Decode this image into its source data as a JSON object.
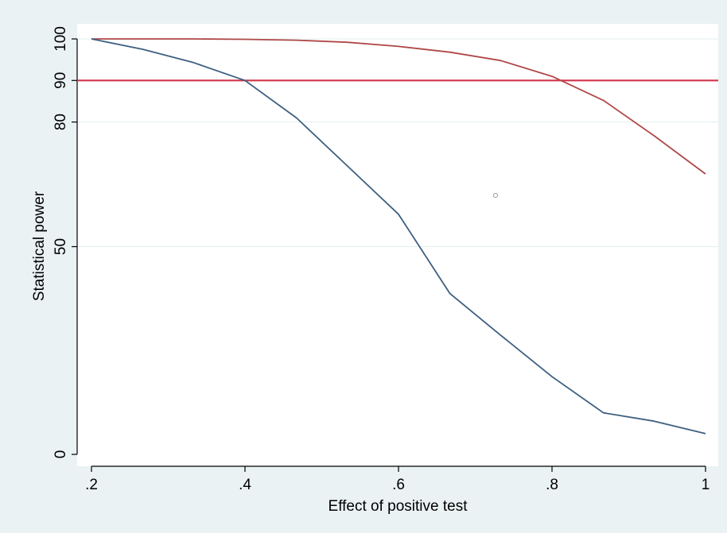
{
  "chart_data": {
    "type": "line",
    "title": "",
    "xlabel": "Effect of positive test",
    "ylabel": "Statistical power",
    "xlim": [
      0.2,
      1.0
    ],
    "ylim": [
      0,
      100
    ],
    "x_ticks": [
      {
        "value": 0.2,
        "label": ".2"
      },
      {
        "value": 0.4,
        "label": ".4"
      },
      {
        "value": 0.6,
        "label": ".6"
      },
      {
        "value": 0.8,
        "label": ".8"
      },
      {
        "value": 1.0,
        "label": "1"
      }
    ],
    "y_ticks": [
      {
        "value": 0,
        "label": "0"
      },
      {
        "value": 50,
        "label": "50"
      },
      {
        "value": 80,
        "label": "80"
      },
      {
        "value": 90,
        "label": "90"
      },
      {
        "value": 100,
        "label": "100"
      }
    ],
    "grid": "horizontal",
    "reference_line": {
      "y": 90,
      "color": "#d0344a"
    },
    "series": [
      {
        "color": "#b04848",
        "x": [
          0.2,
          0.267,
          0.333,
          0.4,
          0.467,
          0.533,
          0.6,
          0.667,
          0.733,
          0.8,
          0.867,
          0.933,
          1.0
        ],
        "values": [
          100,
          100,
          100,
          99.9,
          99.7,
          99.2,
          98.2,
          96.8,
          94.8,
          91,
          85.2,
          76.7,
          67.5
        ]
      },
      {
        "color": "#3d5f80",
        "x": [
          0.2,
          0.267,
          0.333,
          0.4,
          0.467,
          0.533,
          0.6,
          0.667,
          0.733,
          0.8,
          0.867,
          0.933,
          1.0
        ],
        "values": [
          100,
          97.5,
          94.3,
          90,
          81,
          69.5,
          57.8,
          38.7,
          28.7,
          18.7,
          10,
          8,
          5
        ]
      }
    ]
  }
}
